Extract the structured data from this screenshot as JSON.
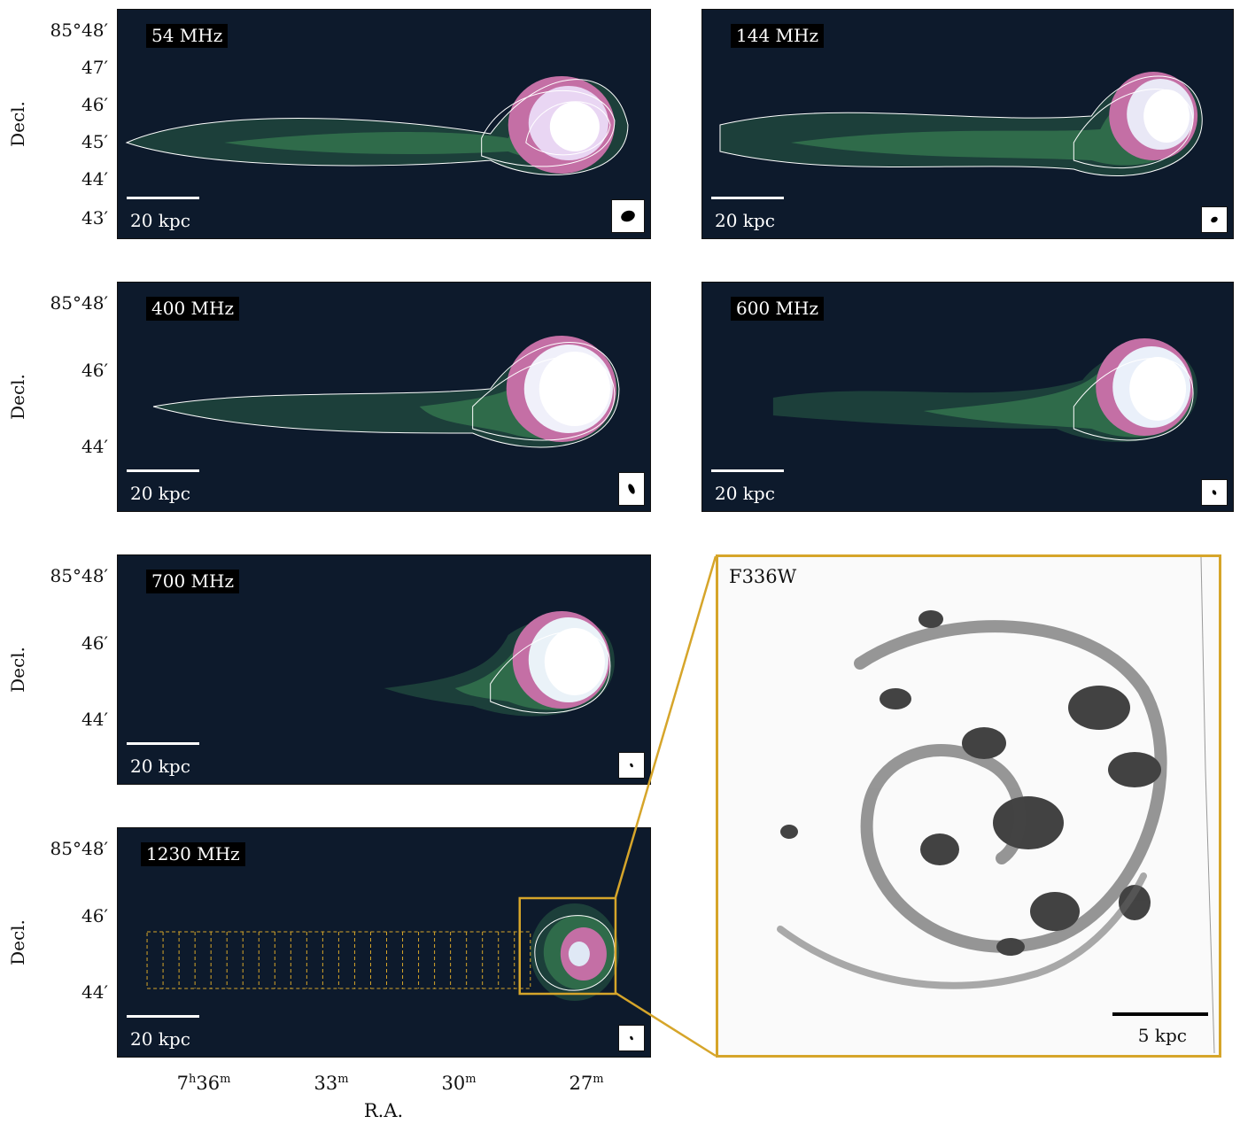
{
  "panels": [
    {
      "freq": "54 MHz",
      "scale": "20 kpc",
      "yticks": [
        "85°48′",
        "47′",
        "46′",
        "45′",
        "44′",
        "43′"
      ],
      "ylabel": "Decl."
    },
    {
      "freq": "144 MHz",
      "scale": "20 kpc"
    },
    {
      "freq": "400 MHz",
      "scale": "20 kpc",
      "yticks": [
        "85°48′",
        "46′",
        "44′"
      ],
      "ylabel": "Decl."
    },
    {
      "freq": "600 MHz",
      "scale": "20 kpc"
    },
    {
      "freq": "700 MHz",
      "scale": "20 kpc",
      "yticks": [
        "85°48′",
        "46′",
        "44′"
      ],
      "ylabel": "Decl."
    },
    {
      "freq": "1230 MHz",
      "scale": "20 kpc",
      "yticks": [
        "85°48′",
        "46′",
        "44′"
      ],
      "ylabel": "Decl."
    }
  ],
  "xaxis": {
    "ticks": [
      {
        "main": "7",
        "sup1": "h",
        "mid": "36",
        "sup2": "m"
      },
      {
        "main": "33",
        "sup2": "m"
      },
      {
        "main": "30",
        "sup2": "m"
      },
      {
        "main": "27",
        "sup2": "m"
      }
    ],
    "label": "R.A."
  },
  "optical": {
    "filter": "F336W",
    "scale": "5 kpc"
  },
  "colors": {
    "background": "#0d1a2c",
    "highlight": "#d6a52a",
    "contour": "#ffffff"
  }
}
